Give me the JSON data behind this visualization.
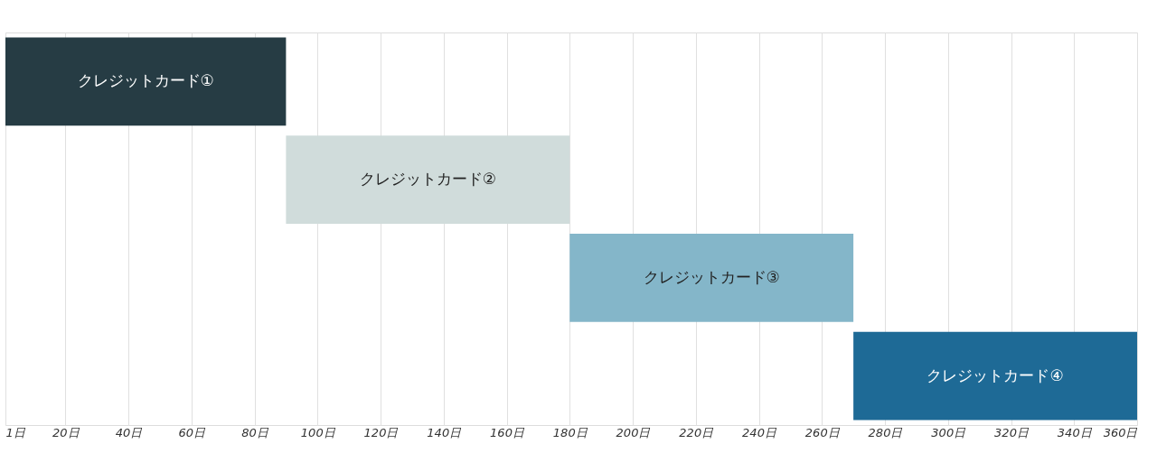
{
  "chart_data": {
    "type": "bar",
    "orientation": "horizontal",
    "tick_labels": "x",
    "grid": "x",
    "categories": [
      "クレジットカード①",
      "クレジットカード②",
      "クレジットカード③",
      "クレジットカード④"
    ],
    "base": [
      1,
      90,
      180,
      270
    ],
    "values": [
      89,
      90,
      90,
      90
    ],
    "colors": [
      "#263c44",
      "#d0dcdb",
      "#84b6c9",
      "#1e6a96"
    ],
    "data_labels": false,
    "xlim": [
      1,
      360
    ],
    "xticks": [
      {
        "value": 1,
        "label": "1日"
      },
      {
        "value": 20,
        "label": "20日"
      },
      {
        "value": 40,
        "label": "40日"
      },
      {
        "value": 60,
        "label": "60日"
      },
      {
        "value": 80,
        "label": "80日"
      },
      {
        "value": 100,
        "label": "100日"
      },
      {
        "value": 120,
        "label": "120日"
      },
      {
        "value": 140,
        "label": "140日"
      },
      {
        "value": 160,
        "label": "160日"
      },
      {
        "value": 180,
        "label": "180日"
      },
      {
        "value": 200,
        "label": "200日"
      },
      {
        "value": 220,
        "label": "220日"
      },
      {
        "value": 240,
        "label": "240日"
      },
      {
        "value": 260,
        "label": "260日"
      },
      {
        "value": 280,
        "label": "280日"
      },
      {
        "value": 300,
        "label": "300日"
      },
      {
        "value": 320,
        "label": "320日"
      },
      {
        "value": 340,
        "label": "340日"
      },
      {
        "value": 360,
        "label": "360日"
      }
    ]
  }
}
